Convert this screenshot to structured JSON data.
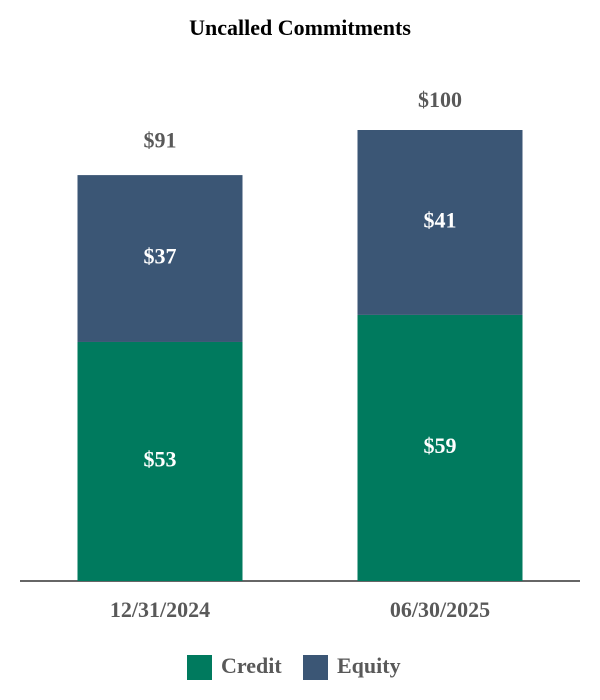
{
  "chart_data": {
    "type": "stacked_bar",
    "title": "Uncalled Commitments",
    "categories": [
      "12/31/2024",
      "06/30/2025"
    ],
    "series": [
      {
        "name": "Credit",
        "color": "#007a5e",
        "values": [
          53,
          59
        ],
        "value_labels": [
          "$53",
          "$59"
        ]
      },
      {
        "name": "Equity",
        "color": "#3b5675",
        "values": [
          37,
          41
        ],
        "value_labels": [
          "$37",
          "$41"
        ]
      }
    ],
    "totals": [
      91,
      100
    ],
    "total_labels": [
      "$91",
      "$100"
    ]
  }
}
